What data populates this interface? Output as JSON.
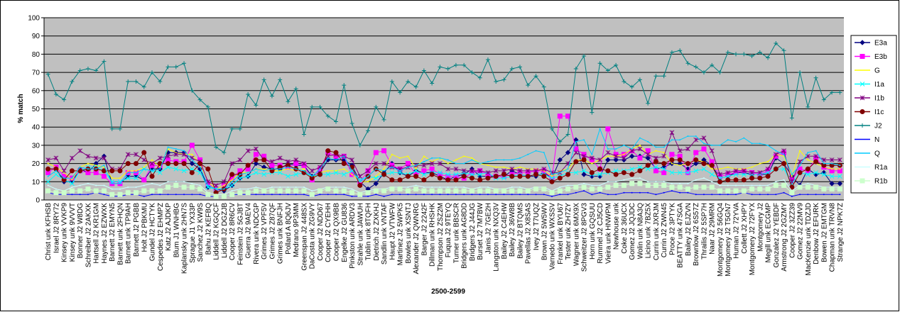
{
  "chart_data": {
    "type": "line",
    "y_label": "% match",
    "x_label": "2500-2599",
    "ylim": [
      0,
      100
    ],
    "yticks": [
      0,
      10,
      20,
      30,
      40,
      50,
      60,
      70,
      80,
      90,
      100
    ],
    "grid": true,
    "legend": "right",
    "categories": [
      "Christ unk KFHSB",
      "Israel J2 8RY72",
      "Kinsey unk VVKP9",
      "Kinsey unk 9VVVT",
      "Bonner J2 W8DG",
      "Schreiber J2 2AKXK",
      "Hartsell J2 KR1GM",
      "Haynes J2 EZWXK",
      "Barnett J2 EMYN5",
      "Barnett unk 2FHQN",
      "Barnett unk TP9AH",
      "Barnett J2 PGBB",
      "Holt J2 PBKMU",
      "Gundel J2 HCTYK",
      "Cespedes J2 EHMPZ",
      "Katz J2 AJDKP",
      "Blum J1 WNHBG",
      "Kaplansky unk 2HN7S",
      "Sprague J1 YX33P",
      "Sanchez J2 KW9S",
      "Bahu J2 KEFBQ",
      "Liddell J2 KGQCF",
      "Liddell J2 DGZJB",
      "Cooper J2 8R6CV",
      "Feinstein J2 5GJBT",
      "Guerra J2 9AEV4",
      "Rivera unk NDCGP",
      "Grimes J2 VPF5V",
      "Grimes J2 Z87QF",
      "Grimes unk BNFJH",
      "Pollard A 8Q6JV",
      "Medrano 9P3MM",
      "Greenspan J2 448SX",
      "DaCosta unk ZG9VY",
      "Cooper J2 NDD67",
      "Cooper J2 CYEHH",
      "Cooper J2 QX9BB",
      "Engelke J2 GU836",
      "Pinkston unk ARDV3",
      "Strahle unk JAWUH",
      "Tublin unk 8TQFH",
      "Dietrich J2 ZXKHJ",
      "Sandlin unk VNTAF",
      "Haupt J2 VTWFW",
      "Martinez J2 5WPK5",
      "Bowles unk XSNTJ",
      "Alexander J2 QWNRG",
      "Barger J2 2242F",
      "Dillman unk RHSHK",
      "Thompson J2 ZSZ2M",
      "Fuqua J2 9TEYQ",
      "Turner unk BBSCR",
      "Bridgers unk AG8DD",
      "Bridgers J2 J44JG",
      "Burset J2 7M7BW",
      "Janis J2 7GE2H",
      "Langston unk NXQ3V",
      "Bailey J2 C4EHW",
      "Bailey J2 36W8B",
      "Bailey J2 BTQMS",
      "Pavellas J2 X8SAS",
      "Ivey J2 T7UQZ",
      "Brown J2 5W5WV",
      "Varnedo unk WXSSV",
      "Frankel unk BYU67",
      "Tester unk ZH7ZY",
      "Wagner unk 6MX9X",
      "Schweitzer J2 8PGV3",
      "Horn unk GQSUU",
      "Rummel J2 CJ5CD",
      "Vieira unk HNWPM",
      "Newhouse unk",
      "Coke J2 36UCX",
      "Gomez J2 JQJDC",
      "Wolin unk N8A3Q",
      "Licino unk 7BZ5X",
      "Currin unk JXRJM",
      "Currin J2 ZWN45",
      "Proce J2 3PTYK",
      "BEATTY unk 47SGA",
      "Bailey J2 EJZVN",
      "Brownlow J2 6S57Z",
      "Thrailis J2 5SP7H",
      "Naar J2 29MRM",
      "Montgomery J2 56GQ4",
      "Montgomery J2 T5GN7",
      "Human J2 72YVA",
      "Collett J2 XHPY",
      "Montgomery J2 72FYX",
      "Montgomery J2",
      "Megill unk ECGMP",
      "Gonzalez J2 YEBDF",
      "Armstrong J2 2GZMY",
      "Cooper J2 3ZZ39",
      "Gomez J2 22MV9",
      "MacKenzie unk TDZJD",
      "Denbow J2 EFURK",
      "Bowen J2 EMTGM",
      "Chapman unk TRVN8",
      "Strange J2 NPK7Z"
    ],
    "series": [
      {
        "name": "E3a",
        "color": "#000080",
        "marker": "diamond",
        "values": [
          17,
          17,
          10,
          10,
          17,
          15,
          20,
          24,
          9,
          9,
          13,
          13,
          11,
          17,
          17,
          26,
          26,
          26,
          20,
          17,
          7,
          6,
          5,
          8,
          12,
          13,
          20,
          18,
          17,
          17,
          20,
          19,
          19,
          13,
          15,
          22,
          22,
          22,
          19,
          10,
          6,
          9,
          15,
          20,
          15,
          13,
          16,
          15,
          15,
          13,
          11,
          13,
          14,
          17,
          13,
          13,
          13,
          13,
          16,
          14,
          13,
          13,
          15,
          12,
          22,
          26,
          33,
          14,
          13,
          13,
          22,
          22,
          22,
          24,
          24,
          23,
          17,
          18,
          20,
          20,
          17,
          20,
          22,
          19,
          12,
          13,
          15,
          15,
          14,
          14,
          14,
          23,
          20,
          13,
          8,
          17,
          14,
          15,
          9,
          9
        ]
      },
      {
        "name": "E3b",
        "color": "#ff00ff",
        "marker": "square",
        "values": [
          15,
          18,
          13,
          12,
          16,
          15,
          15,
          13,
          9,
          9,
          15,
          15,
          11,
          19,
          19,
          22,
          21,
          21,
          30,
          22,
          9,
          6,
          8,
          12,
          16,
          17,
          25,
          24,
          19,
          19,
          18,
          20,
          19,
          11,
          17,
          26,
          24,
          24,
          14,
          10,
          16,
          26,
          27,
          19,
          17,
          20,
          14,
          16,
          17,
          14,
          13,
          13,
          12,
          15,
          16,
          14,
          13,
          13,
          14,
          15,
          15,
          16,
          16,
          12,
          46,
          46,
          28,
          25,
          22,
          17,
          39,
          25,
          25,
          27,
          23,
          27,
          16,
          15,
          25,
          24,
          15,
          26,
          28,
          21,
          13,
          14,
          15,
          16,
          15,
          14,
          16,
          24,
          26,
          11,
          17,
          16,
          23,
          18,
          16,
          16
        ]
      },
      {
        "name": "G",
        "color": "#ffff00",
        "marker": "none",
        "values": [
          20,
          18,
          15,
          11,
          18,
          20,
          19,
          18,
          12,
          12,
          16,
          16,
          18,
          22,
          18,
          28,
          26,
          25,
          25,
          20,
          10,
          6,
          8,
          11,
          15,
          15,
          17,
          17,
          16,
          16,
          17,
          16,
          17,
          12,
          15,
          16,
          16,
          17,
          14,
          10,
          10,
          13,
          17,
          25,
          23,
          24,
          17,
          24,
          21,
          23,
          20,
          22,
          24,
          23,
          20,
          19,
          18,
          18,
          17,
          18,
          17,
          17,
          16,
          13,
          16,
          17,
          22,
          22,
          20,
          22,
          24,
          24,
          25,
          28,
          30,
          25,
          27,
          26,
          20,
          19,
          20,
          22,
          21,
          17,
          17,
          18,
          17,
          17,
          18,
          20,
          21,
          25,
          24,
          13,
          27,
          22,
          20,
          18,
          17,
          17
        ]
      },
      {
        "name": "I1a",
        "color": "#00ffff",
        "marker": "x",
        "values": [
          10,
          14,
          11,
          9,
          16,
          18,
          18,
          16,
          10,
          10,
          12,
          12,
          17,
          16,
          15,
          18,
          17,
          16,
          17,
          15,
          7,
          6,
          6,
          8,
          12,
          13,
          15,
          14,
          15,
          15,
          13,
          14,
          15,
          13,
          14,
          14,
          15,
          14,
          16,
          11,
          13,
          12,
          14,
          15,
          15,
          14,
          16,
          14,
          15,
          15,
          14,
          14,
          15,
          14,
          14,
          15,
          12,
          12,
          13,
          14,
          13,
          14,
          14,
          12,
          13,
          15,
          15,
          16,
          14,
          14,
          15,
          16,
          16,
          17,
          18,
          17,
          18,
          17,
          15,
          15,
          15,
          16,
          17,
          14,
          12,
          13,
          14,
          14,
          14,
          14,
          15,
          17,
          17,
          9,
          15,
          14,
          15,
          14,
          13,
          13
        ]
      },
      {
        "name": "I1b",
        "color": "#800080",
        "marker": "star",
        "values": [
          22,
          23,
          16,
          23,
          27,
          24,
          23,
          23,
          17,
          17,
          25,
          25,
          22,
          20,
          23,
          24,
          25,
          25,
          23,
          21,
          10,
          8,
          10,
          20,
          22,
          27,
          28,
          22,
          21,
          23,
          21,
          22,
          20,
          16,
          18,
          24,
          25,
          24,
          22,
          13,
          16,
          20,
          20,
          18,
          17,
          18,
          19,
          19,
          20,
          20,
          17,
          17,
          16,
          16,
          16,
          15,
          16,
          16,
          17,
          16,
          16,
          16,
          17,
          15,
          15,
          20,
          26,
          24,
          23,
          22,
          26,
          24,
          23,
          27,
          28,
          25,
          23,
          24,
          37,
          27,
          28,
          33,
          34,
          27,
          14,
          15,
          16,
          16,
          15,
          15,
          17,
          25,
          27,
          10,
          21,
          24,
          24,
          22,
          22,
          22
        ]
      },
      {
        "name": "I1c",
        "color": "#800000",
        "marker": "circle",
        "values": [
          17,
          17,
          11,
          16,
          16,
          17,
          17,
          16,
          16,
          16,
          20,
          20,
          26,
          13,
          20,
          20,
          20,
          20,
          15,
          20,
          17,
          4,
          6,
          14,
          14,
          19,
          22,
          22,
          16,
          18,
          19,
          17,
          15,
          12,
          14,
          27,
          26,
          20,
          18,
          8,
          13,
          17,
          14,
          11,
          11,
          13,
          13,
          11,
          14,
          12,
          11,
          11,
          13,
          12,
          11,
          12,
          13,
          14,
          13,
          13,
          13,
          14,
          13,
          10,
          12,
          14,
          21,
          22,
          15,
          17,
          16,
          14,
          15,
          14,
          16,
          19,
          21,
          20,
          22,
          22,
          20,
          22,
          20,
          19,
          10,
          11,
          11,
          11,
          12,
          12,
          13,
          17,
          20,
          7,
          15,
          17,
          21,
          19,
          19,
          19
        ]
      },
      {
        "name": "J2",
        "color": "#008080",
        "marker": "plus",
        "values": [
          69,
          58,
          55,
          65,
          71,
          72,
          71,
          76,
          39,
          39,
          65,
          65,
          62,
          70,
          65,
          73,
          73,
          75,
          60,
          55,
          51,
          29,
          26,
          39,
          39,
          58,
          52,
          66,
          57,
          66,
          54,
          61,
          36,
          51,
          51,
          46,
          43,
          63,
          42,
          30,
          38,
          51,
          44,
          65,
          59,
          65,
          62,
          71,
          64,
          73,
          72,
          74,
          74,
          70,
          67,
          77,
          65,
          66,
          72,
          73,
          63,
          68,
          62,
          39,
          32,
          36,
          72,
          79,
          48,
          75,
          71,
          74,
          65,
          62,
          66,
          53,
          68,
          68,
          81,
          82,
          75,
          73,
          70,
          74,
          70,
          81,
          80,
          80,
          79,
          81,
          78,
          86,
          82,
          45,
          70,
          51,
          67,
          55,
          59,
          59
        ]
      },
      {
        "name": "N",
        "color": "#0000ff",
        "marker": "none",
        "values": [
          4,
          3,
          3,
          3,
          3,
          3,
          4,
          3,
          2,
          2,
          3,
          3,
          2,
          3,
          3,
          3,
          3,
          3,
          3,
          3,
          2,
          2,
          2,
          3,
          3,
          3,
          3,
          3,
          3,
          3,
          3,
          3,
          3,
          2,
          3,
          3,
          3,
          3,
          2,
          2,
          2,
          3,
          2,
          3,
          3,
          3,
          3,
          3,
          3,
          3,
          3,
          3,
          3,
          3,
          3,
          3,
          3,
          3,
          3,
          3,
          3,
          3,
          3,
          2,
          3,
          3,
          4,
          5,
          3,
          4,
          3,
          3,
          4,
          4,
          4,
          4,
          3,
          4,
          5,
          4,
          4,
          3,
          3,
          3,
          3,
          3,
          3,
          4,
          3,
          3,
          3,
          3,
          4,
          2,
          3,
          3,
          3,
          3,
          3,
          3
        ]
      },
      {
        "name": "Q",
        "color": "#00ccff",
        "marker": "none",
        "values": [
          13,
          16,
          12,
          12,
          18,
          17,
          17,
          19,
          9,
          9,
          15,
          15,
          17,
          16,
          17,
          29,
          28,
          27,
          22,
          18,
          8,
          6,
          6,
          10,
          14,
          15,
          17,
          16,
          17,
          17,
          18,
          17,
          16,
          13,
          17,
          23,
          22,
          24,
          16,
          10,
          13,
          17,
          16,
          18,
          16,
          18,
          19,
          21,
          23,
          23,
          22,
          20,
          20,
          22,
          20,
          21,
          22,
          22,
          22,
          23,
          25,
          27,
          26,
          14,
          15,
          17,
          32,
          33,
          25,
          39,
          28,
          28,
          30,
          28,
          34,
          32,
          29,
          29,
          33,
          33,
          35,
          35,
          31,
          30,
          30,
          33,
          32,
          34,
          31,
          31,
          30,
          27,
          25,
          14,
          19,
          26,
          27,
          20,
          20,
          19
        ]
      },
      {
        "name": "R1a",
        "color": "#ccffff",
        "marker": "none",
        "values": [
          8,
          6,
          5,
          7,
          8,
          9,
          8,
          8,
          6,
          6,
          7,
          7,
          8,
          9,
          8,
          10,
          10,
          10,
          9,
          8,
          4,
          3,
          3,
          5,
          6,
          6,
          7,
          6,
          7,
          7,
          7,
          7,
          7,
          5,
          6,
          7,
          7,
          7,
          6,
          4,
          5,
          6,
          6,
          7,
          7,
          7,
          8,
          7,
          7,
          7,
          7,
          7,
          7,
          6,
          7,
          7,
          6,
          6,
          7,
          7,
          6,
          7,
          7,
          5,
          7,
          8,
          8,
          9,
          8,
          8,
          10,
          10,
          11,
          12,
          12,
          10,
          10,
          10,
          9,
          9,
          9,
          11,
          12,
          10,
          8,
          8,
          8,
          8,
          8,
          8,
          8,
          10,
          11,
          5,
          8,
          9,
          8,
          7,
          7,
          7
        ]
      },
      {
        "name": "R1b",
        "color": "#ccffcc",
        "marker": "square",
        "values": [
          5,
          4,
          4,
          5,
          5,
          6,
          5,
          5,
          3,
          3,
          4,
          4,
          5,
          5,
          5,
          7,
          8,
          7,
          7,
          6,
          3,
          2,
          2,
          3,
          4,
          4,
          5,
          5,
          5,
          5,
          5,
          5,
          5,
          3,
          5,
          6,
          5,
          5,
          4,
          3,
          4,
          5,
          5,
          6,
          6,
          5,
          6,
          5,
          5,
          5,
          5,
          5,
          5,
          5,
          5,
          5,
          5,
          5,
          5,
          5,
          5,
          6,
          6,
          4,
          5,
          6,
          7,
          7,
          6,
          6,
          7,
          8,
          8,
          9,
          9,
          8,
          8,
          8,
          7,
          7,
          6,
          7,
          7,
          7,
          5,
          5,
          5,
          5,
          6,
          6,
          6,
          8,
          8,
          4,
          7,
          7,
          7,
          6,
          6,
          6
        ]
      }
    ]
  }
}
